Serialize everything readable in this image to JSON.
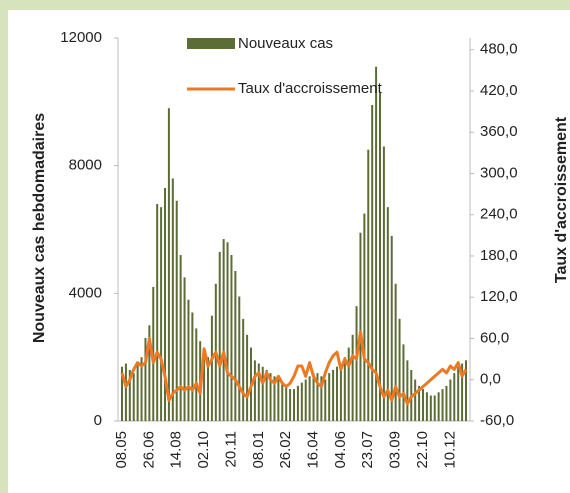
{
  "chart_data": {
    "type": "bar-line",
    "ylabel": "Nouveaux cas hebdomadaires",
    "y2label": "Taux d'accroissement",
    "categories": [
      "08.05",
      null,
      null,
      null,
      null,
      null,
      null,
      "26.06",
      null,
      null,
      null,
      null,
      null,
      null,
      "14.08",
      null,
      null,
      null,
      null,
      null,
      null,
      "02.10",
      null,
      null,
      null,
      null,
      null,
      null,
      "20.11",
      null,
      null,
      null,
      null,
      null,
      null,
      "08.01",
      null,
      null,
      null,
      null,
      null,
      null,
      "26.02",
      null,
      null,
      null,
      null,
      null,
      null,
      "16.04",
      null,
      null,
      null,
      null,
      null,
      null,
      "04.06",
      null,
      null,
      null,
      null,
      null,
      null,
      "23.07",
      null,
      null,
      null,
      null,
      null,
      null,
      "03.09",
      null,
      null,
      null,
      null,
      null,
      null,
      "22.10",
      null,
      null,
      null,
      null,
      null,
      null,
      "10.12",
      null,
      null,
      null,
      null
    ],
    "series": [
      {
        "name": "Nouveaux cas",
        "type": "bar",
        "color": "#5b6d34",
        "values": [
          1700,
          1800,
          1600,
          1500,
          1800,
          2000,
          2600,
          3000,
          4200,
          6800,
          6700,
          7300,
          9800,
          7600,
          6900,
          5200,
          4500,
          3800,
          3400,
          2900,
          2500,
          2200,
          2000,
          3300,
          4300,
          5300,
          5700,
          5600,
          5200,
          4700,
          3900,
          3200,
          2700,
          2300,
          1900,
          1800,
          1700,
          1600,
          1500,
          1400,
          1300,
          1200,
          1100,
          1000,
          1000,
          1100,
          1200,
          1300,
          1400,
          1500,
          1500,
          1400,
          1300,
          1500,
          1600,
          1700,
          1800,
          2000,
          2300,
          2700,
          3600,
          5900,
          6500,
          8500,
          9900,
          11100,
          10300,
          8600,
          6700,
          5800,
          4300,
          3200,
          2400,
          1900,
          1600,
          1300,
          1100,
          1000,
          900,
          800,
          800,
          900,
          1000,
          1100,
          1300,
          1500,
          1700,
          1800,
          1900
        ]
      },
      {
        "name": "Taux d'accroissement",
        "type": "line",
        "axis": "y2",
        "color": "#ec7a24",
        "values": [
          10,
          -10,
          0,
          15,
          25,
          20,
          25,
          60,
          25,
          40,
          30,
          5,
          -30,
          -20,
          -15,
          -10,
          -15,
          -10,
          -15,
          -5,
          -20,
          45,
          20,
          30,
          40,
          20,
          40,
          10,
          5,
          0,
          -10,
          -20,
          -25,
          -10,
          5,
          10,
          -5,
          10,
          0,
          -5,
          5,
          -5,
          -10,
          -5,
          5,
          20,
          20,
          5,
          25,
          5,
          -5,
          -10,
          10,
          25,
          35,
          40,
          15,
          30,
          20,
          35,
          30,
          70,
          30,
          25,
          15,
          10,
          -10,
          -25,
          -15,
          -30,
          -10,
          -25,
          -20,
          -35,
          -25,
          -20,
          -15,
          -10,
          -5,
          0,
          5,
          10,
          15,
          10,
          20,
          15,
          25,
          5,
          15
        ]
      }
    ],
    "ylim": [
      0,
      12000
    ],
    "yticks": [
      0,
      4000,
      8000,
      12000
    ],
    "y2lim": [
      -60,
      497
    ],
    "y2ticks": [
      {
        "value": -60,
        "label": "-60,0"
      },
      {
        "value": 0,
        "label": "0,0"
      },
      {
        "value": 60,
        "label": "60,0"
      },
      {
        "value": 120,
        "label": "120,0"
      },
      {
        "value": 180,
        "label": "180,0"
      },
      {
        "value": 240,
        "label": "240,0"
      },
      {
        "value": 300,
        "label": "300,0"
      },
      {
        "value": 360,
        "label": "360,0"
      },
      {
        "value": 420,
        "label": "420,0"
      },
      {
        "value": 480,
        "label": "480,0"
      }
    ],
    "legend": "top"
  }
}
